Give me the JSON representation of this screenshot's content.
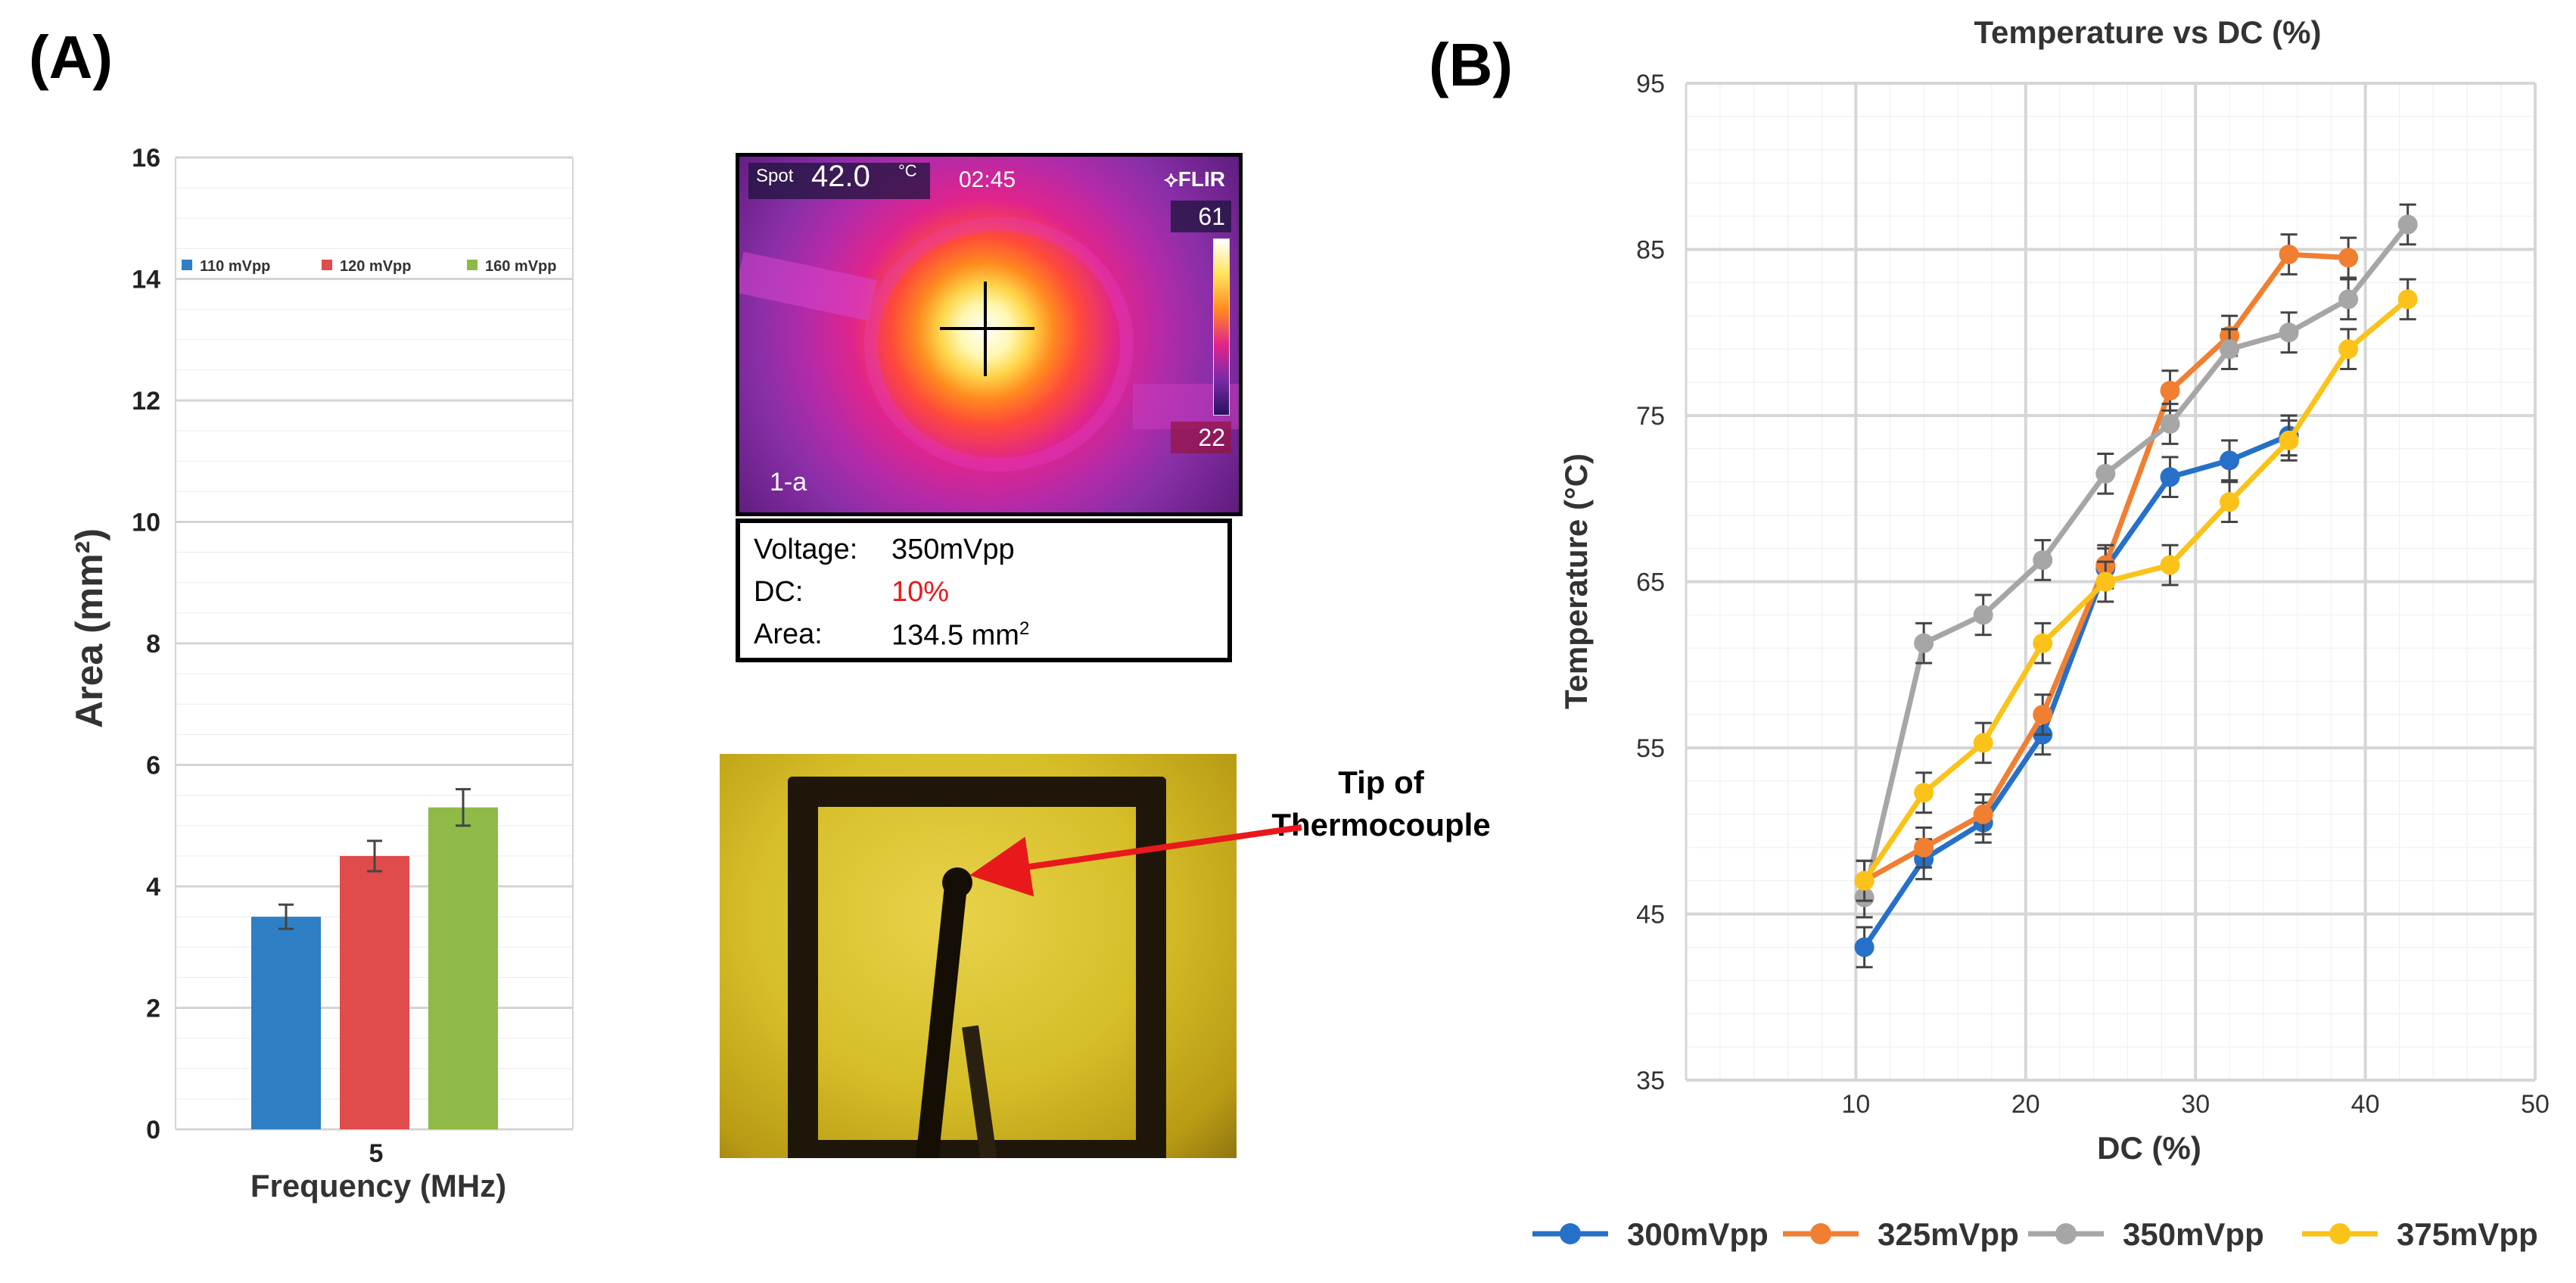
{
  "panels": {
    "a_label": "(A)",
    "b_label": "(B)"
  },
  "chart_data": [
    {
      "type": "bar",
      "title": "",
      "categories": [
        "5"
      ],
      "xlabel": "Frequency (MHz)",
      "ylabel": "Area (mm²)",
      "ylim": [
        0,
        16
      ],
      "yticks": [
        0,
        2,
        4,
        6,
        8,
        10,
        12,
        14,
        16
      ],
      "legend_position": "top",
      "series": [
        {
          "name": "110 mVpp",
          "color": "#2e7fc4",
          "values": [
            3.5
          ],
          "error": [
            0.2
          ]
        },
        {
          "name": "120 mVpp",
          "color": "#e04b4b",
          "values": [
            4.5
          ],
          "error": [
            0.25
          ]
        },
        {
          "name": "160 mVpp",
          "color": "#8fba47",
          "values": [
            5.3
          ],
          "error": [
            0.3
          ]
        }
      ]
    },
    {
      "type": "line",
      "title": "Temperature vs DC (%)",
      "xlabel": "DC (%)",
      "ylabel": "Temperature (°C)",
      "xlim": [
        0,
        50
      ],
      "ylim": [
        35,
        95
      ],
      "xticks": [
        10,
        20,
        30,
        40,
        50
      ],
      "yticks": [
        35,
        45,
        55,
        65,
        75,
        85,
        95
      ],
      "legend_position": "bottom",
      "series": [
        {
          "name": "300mVpp",
          "color": "#2670c9",
          "x": [
            10.5,
            14,
            17.5,
            21,
            24.7,
            28.5,
            32,
            35.5
          ],
          "y": [
            43,
            48.3,
            50.5,
            55.8,
            65.8,
            71.3,
            72.3,
            73.8
          ]
        },
        {
          "name": "325mVpp",
          "color": "#f07f32",
          "x": [
            10.5,
            14,
            17.5,
            21,
            24.7,
            28.5,
            32,
            35.5,
            39
          ],
          "y": [
            47,
            49,
            51,
            57,
            66,
            76.5,
            79.8,
            84.7,
            84.5
          ]
        },
        {
          "name": "350mVpp",
          "color": "#a6a6a6",
          "x": [
            10.5,
            14,
            17.5,
            21,
            24.7,
            28.5,
            32,
            35.5,
            39,
            42.5
          ],
          "y": [
            46,
            61.3,
            63,
            66.3,
            71.5,
            74.5,
            79,
            80,
            82,
            86.5
          ]
        },
        {
          "name": "375mVpp",
          "color": "#fbc319",
          "x": [
            10.5,
            14,
            17.5,
            21,
            24.7,
            28.5,
            32,
            35.5,
            39,
            42.5
          ],
          "y": [
            47,
            52.3,
            55.3,
            61.3,
            65,
            66,
            69.8,
            73.5,
            79,
            82
          ]
        }
      ],
      "error_bar": 1.2
    }
  ],
  "thermal": {
    "spot_label": "Spot",
    "spot_value": "42.0",
    "unit": "°C",
    "time": "02:45",
    "brand": "⟡FLIR",
    "scale_max": "61",
    "scale_min": "22",
    "image_label": "1-a"
  },
  "info": {
    "voltage_key": "Voltage:",
    "voltage_val": "350mVpp",
    "dc_key": "DC:",
    "dc_val": "10%",
    "area_key": "Area:",
    "area_val": "134.5 mm",
    "area_sup": "2"
  },
  "annotation": {
    "line1": "Tip of",
    "line2": "Thermocouple"
  }
}
